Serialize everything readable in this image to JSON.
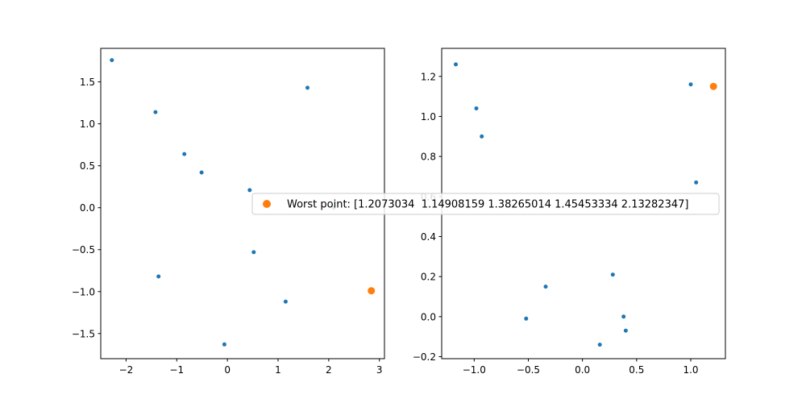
{
  "chart_data": [
    {
      "type": "scatter",
      "xlim": [
        -2.5,
        3.1
      ],
      "ylim": [
        -1.8,
        1.9
      ],
      "x_ticks": [
        -2,
        -1,
        0,
        1,
        2,
        3
      ],
      "y_ticks": [
        -1.5,
        -1.0,
        -0.5,
        0.0,
        0.5,
        1.0,
        1.5
      ],
      "x_tick_labels": [
        "−2",
        "−1",
        "0",
        "1",
        "2",
        "3"
      ],
      "y_tick_labels": [
        "−1.5",
        "−1.0",
        "−0.5",
        "0.0",
        "0.5",
        "1.0",
        "1.5"
      ],
      "grid": false,
      "series": [
        {
          "points": [
            [
              -2.28,
              1.76
            ],
            [
              -1.42,
              1.14
            ],
            [
              -0.85,
              0.64
            ],
            [
              -0.51,
              0.42
            ],
            [
              0.44,
              0.21
            ],
            [
              1.58,
              1.43
            ],
            [
              2.1,
              0.0
            ],
            [
              -1.36,
              -0.82
            ],
            [
              0.52,
              -0.53
            ],
            [
              1.15,
              -1.12
            ],
            [
              -0.06,
              -1.63
            ]
          ],
          "color": "#1f77b4"
        },
        {
          "points": [
            [
              2.84,
              -0.99
            ]
          ],
          "color": "#ff7f0e"
        }
      ]
    },
    {
      "type": "scatter",
      "xlim": [
        -1.3,
        1.32
      ],
      "ylim": [
        -0.21,
        1.34
      ],
      "x_ticks": [
        -1.0,
        -0.5,
        0.0,
        0.5,
        1.0
      ],
      "y_ticks": [
        -0.2,
        0.0,
        0.2,
        0.4,
        0.6,
        0.8,
        1.0,
        1.2
      ],
      "x_tick_labels": [
        "−1.0",
        "−0.5",
        "0.0",
        "0.5",
        "1.0"
      ],
      "y_tick_labels": [
        "−0.2",
        "0.0",
        "0.2",
        "0.4",
        "0.6",
        "0.8",
        "1.0",
        "1.2"
      ],
      "grid": false,
      "series": [
        {
          "points": [
            [
              -1.17,
              1.26
            ],
            [
              -0.98,
              1.04
            ],
            [
              -0.93,
              0.9
            ],
            [
              1.0,
              1.16
            ],
            [
              1.05,
              0.67
            ],
            [
              -0.34,
              0.15
            ],
            [
              -0.52,
              -0.01
            ],
            [
              0.28,
              0.21
            ],
            [
              0.38,
              0.0
            ],
            [
              0.4,
              -0.07
            ],
            [
              0.16,
              -0.14
            ]
          ],
          "color": "#1f77b4"
        },
        {
          "points": [
            [
              1.21,
              1.15
            ]
          ],
          "color": "#ff7f0e"
        }
      ]
    }
  ],
  "legend": {
    "label": "Worst point: [1.2073034  1.14908159 1.38265014 1.45453334 2.13282347]",
    "marker_color": "#ff7f0e",
    "placement": "center"
  }
}
